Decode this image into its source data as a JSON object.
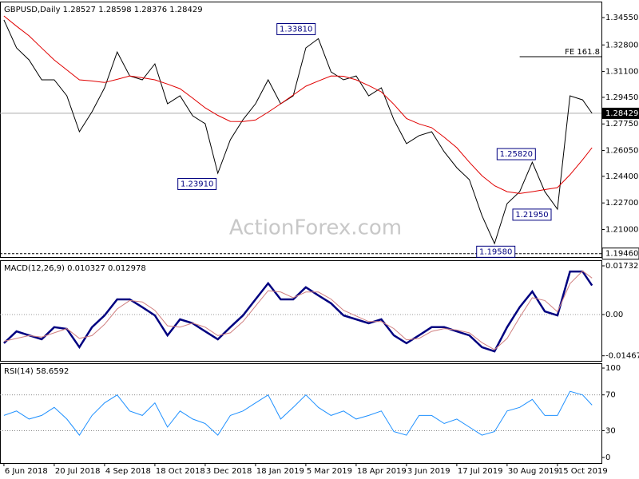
{
  "chart_data": [
    {
      "type": "line",
      "title": "GBPUSD,Daily 1.28527 1.28598 1.28376 1.28429",
      "watermark": "ActionForex.com",
      "x": [
        0,
        8,
        16,
        24,
        32,
        40,
        48,
        56,
        64,
        72,
        80,
        88,
        96,
        104,
        112,
        120,
        128,
        136,
        144,
        152,
        160,
        168,
        176,
        184,
        192,
        200,
        208,
        216,
        224,
        232,
        240,
        248,
        256,
        264,
        272,
        280,
        288,
        296,
        304,
        312,
        320,
        328,
        336,
        344,
        352,
        360,
        368,
        374
      ],
      "xlim": [
        -2.5,
        380
      ],
      "ylim": [
        1.1924,
        1.3557
      ],
      "yticks": [
        {
          "value": 1.3455,
          "label": "1.34550"
        },
        {
          "value": 1.328,
          "label": "1.32800"
        },
        {
          "value": 1.311,
          "label": "1.31100"
        },
        {
          "value": 1.2945,
          "label": "1.29450"
        },
        {
          "value": 1.2775,
          "label": "1.27750"
        },
        {
          "value": 1.2605,
          "label": "1.26050"
        },
        {
          "value": 1.244,
          "label": "1.24400"
        },
        {
          "value": 1.227,
          "label": "1.22700"
        },
        {
          "value": 1.21,
          "label": "1.21000"
        }
      ],
      "series": [
        {
          "color": "#000000",
          "values": [
            1.344,
            1.3261,
            1.3184,
            1.3057,
            1.3057,
            1.2955,
            1.2725,
            1.2853,
            1.3006,
            1.3235,
            1.3082,
            1.3057,
            1.3159,
            1.2904,
            1.2955,
            1.2827,
            1.2776,
            1.246,
            1.2674,
            1.2802,
            1.2904,
            1.3057,
            1.2904,
            1.2955,
            1.3261,
            1.332,
            1.3108,
            1.3057,
            1.3082,
            1.2955,
            1.3006,
            1.2802,
            1.2649,
            1.27,
            1.2725,
            1.2597,
            1.2495,
            1.2419,
            1.2189,
            1.201,
            1.2266,
            1.2342,
            1.253,
            1.2342,
            1.223,
            1.2955,
            1.2929,
            1.28429
          ]
        },
        {
          "color": "#e00000",
          "values": [
            1.3465,
            1.34,
            1.3338,
            1.326,
            1.3184,
            1.312,
            1.3057,
            1.305,
            1.304,
            1.306,
            1.3082,
            1.307,
            1.3057,
            1.303,
            1.3,
            1.294,
            1.2878,
            1.283,
            1.2791,
            1.279,
            1.28,
            1.285,
            1.2904,
            1.296,
            1.3016,
            1.305,
            1.3082,
            1.308,
            1.3057,
            1.302,
            1.298,
            1.29,
            1.281,
            1.2775,
            1.2751,
            1.269,
            1.2623,
            1.253,
            1.2444,
            1.238,
            1.2342,
            1.233,
            1.2342,
            1.2355,
            1.2368,
            1.245,
            1.2546,
            1.2623
          ]
        }
      ],
      "current": {
        "value": 1.28429,
        "label": "1.28429"
      },
      "support": {
        "value": 1.1946,
        "label": "1.19460"
      },
      "level": {
        "value": 1.3205,
        "label": "FE 161.8",
        "x": 328
      },
      "annotations": [
        {
          "label": "1.33810",
          "value": 1.3381,
          "x": 198
        },
        {
          "label": "1.23910",
          "value": 1.2391,
          "x": 135
        },
        {
          "label": "1.25820",
          "value": 1.2582,
          "x": 338
        },
        {
          "label": "1.21950",
          "value": 1.2195,
          "x": 348
        },
        {
          "label": "1.19580",
          "value": 1.1958,
          "x": 325
        }
      ]
    },
    {
      "type": "line",
      "title": "MACD(12,26,9) 0.010327 0.012978",
      "x": [
        0,
        8,
        16,
        24,
        32,
        40,
        48,
        56,
        64,
        72,
        80,
        88,
        96,
        104,
        112,
        120,
        128,
        136,
        144,
        152,
        160,
        168,
        176,
        184,
        192,
        200,
        208,
        216,
        224,
        232,
        240,
        248,
        256,
        264,
        272,
        280,
        288,
        296,
        304,
        312,
        320,
        328,
        336,
        344,
        352,
        360,
        368,
        374
      ],
      "xlim": [
        -2.5,
        380
      ],
      "ylim": [
        -0.01647,
        0.01931
      ],
      "yticks": [
        0.017323,
        {
          "value": 0,
          "label": "0.00"
        },
        -0.014675
      ],
      "series": [
        {
          "color": "#000080",
          "values": [
            -0.0102,
            -0.006,
            -0.0074,
            -0.0088,
            -0.0045,
            -0.0051,
            -0.0116,
            -0.0045,
            -0.0003,
            0.0054,
            0.0054,
            0.0026,
            -0.0003,
            -0.0074,
            -0.0017,
            -0.0031,
            -0.006,
            -0.0088,
            -0.0045,
            -0.0003,
            0.0054,
            0.0111,
            0.0054,
            0.0054,
            0.0097,
            0.0068,
            0.004,
            -0.0003,
            -0.0017,
            -0.0031,
            -0.0017,
            -0.0074,
            -0.0102,
            -0.0074,
            -0.0045,
            -0.0045,
            -0.006,
            -0.0074,
            -0.0116,
            -0.0131,
            -0.0045,
            0.0026,
            0.0082,
            0.0011,
            -0.0003,
            0.0153,
            0.0153,
            0.010327
          ]
        },
        {
          "color": "#d08080",
          "values": [
            -0.0095,
            -0.0085,
            -0.0075,
            -0.008,
            -0.0065,
            -0.005,
            -0.0085,
            -0.0075,
            -0.0035,
            0.002,
            0.005,
            0.0045,
            0.0015,
            -0.004,
            -0.0045,
            -0.003,
            -0.0045,
            -0.0075,
            -0.0065,
            -0.0025,
            0.003,
            0.0085,
            0.008,
            0.006,
            0.008,
            0.008,
            0.0055,
            0.0015,
            -0.0005,
            -0.0025,
            -0.0025,
            -0.005,
            -0.009,
            -0.0085,
            -0.006,
            -0.005,
            -0.0055,
            -0.0065,
            -0.01,
            -0.0125,
            -0.0085,
            -0.001,
            0.006,
            0.005,
            0.001,
            0.011,
            0.0155,
            0.012978
          ]
        }
      ]
    },
    {
      "type": "line",
      "title": "RSI(14) 58.6592",
      "x": [
        0,
        8,
        16,
        24,
        32,
        40,
        48,
        56,
        64,
        72,
        80,
        88,
        96,
        104,
        112,
        120,
        128,
        136,
        144,
        152,
        160,
        168,
        176,
        184,
        192,
        200,
        208,
        216,
        224,
        232,
        240,
        248,
        256,
        264,
        272,
        280,
        288,
        296,
        304,
        312,
        320,
        328,
        336,
        344,
        352,
        360,
        368,
        374
      ],
      "xlim": [
        -2.5,
        380
      ],
      "ylim": [
        -6.2,
        105.4
      ],
      "yticks": [
        100,
        70,
        30,
        0
      ],
      "levels": [
        70,
        30
      ],
      "xticks": [
        {
          "value": 0,
          "label": "6 Jun 2018"
        },
        {
          "value": 32,
          "label": "20 Jul 2018"
        },
        {
          "value": 64,
          "label": "4 Sep 2018"
        },
        {
          "value": 96,
          "label": "18 Oct 2018"
        },
        {
          "value": 128,
          "label": "3 Dec 2018"
        },
        {
          "value": 160,
          "label": "18 Jan 2019"
        },
        {
          "value": 192,
          "label": "5 Mar 2019"
        },
        {
          "value": 224,
          "label": "18 Apr 2019"
        },
        {
          "value": 256,
          "label": "3 Jun 2019"
        },
        {
          "value": 288,
          "label": "17 Jul 2019"
        },
        {
          "value": 320,
          "label": "30 Aug 2019"
        },
        {
          "value": 352,
          "label": "15 Oct 2019"
        }
      ],
      "series": [
        {
          "color": "#1e90ff",
          "values": [
            47,
            52,
            43,
            47,
            56,
            43,
            25,
            47,
            61,
            70,
            52,
            47,
            61,
            34,
            52,
            43,
            38,
            25,
            47,
            52,
            61,
            70,
            43,
            56,
            70,
            56,
            47,
            52,
            43,
            47,
            52,
            29,
            25,
            47,
            47,
            38,
            43,
            34,
            25,
            29,
            52,
            56,
            65,
            47,
            47,
            74,
            70,
            58.6592
          ]
        }
      ]
    }
  ]
}
